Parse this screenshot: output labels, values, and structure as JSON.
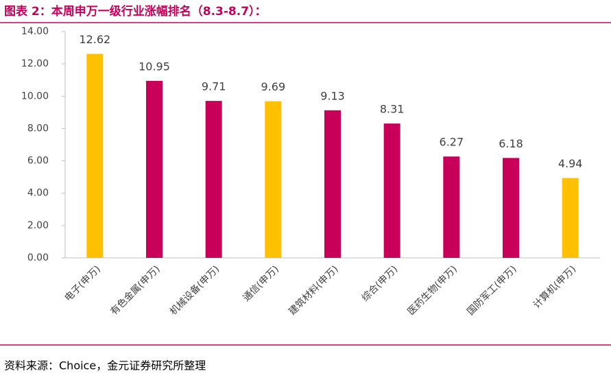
{
  "chart_data": {
    "type": "bar",
    "title": "图表 2：本周申万一级行业涨幅排名（8.3-8.7）：",
    "categories": [
      "电子(申万)",
      "有色金属(申万)",
      "机械设备(申万)",
      "通信(申万)",
      "建筑材料(申万)",
      "综合(申万)",
      "医药生物(申万)",
      "国防军工(申万)",
      "计算机(申万)"
    ],
    "values": [
      12.62,
      10.95,
      9.71,
      9.69,
      9.13,
      8.31,
      6.27,
      6.18,
      4.94
    ],
    "colors": [
      "#ffc000",
      "#c8005a",
      "#c8005a",
      "#ffc000",
      "#c8005a",
      "#c8005a",
      "#c8005a",
      "#c8005a",
      "#ffc000"
    ],
    "ylim": [
      0,
      14
    ],
    "yticks": [
      {
        "value": 0,
        "label": "0.00"
      },
      {
        "value": 2,
        "label": "2.00"
      },
      {
        "value": 4,
        "label": "4.00"
      },
      {
        "value": 6,
        "label": "6.00"
      },
      {
        "value": 8,
        "label": "8.00"
      },
      {
        "value": 10,
        "label": "10.00"
      },
      {
        "value": 12,
        "label": "12.00"
      },
      {
        "value": 14,
        "label": "14.00"
      }
    ],
    "source": "资料来源：Choice，金元证券研究所整理"
  }
}
